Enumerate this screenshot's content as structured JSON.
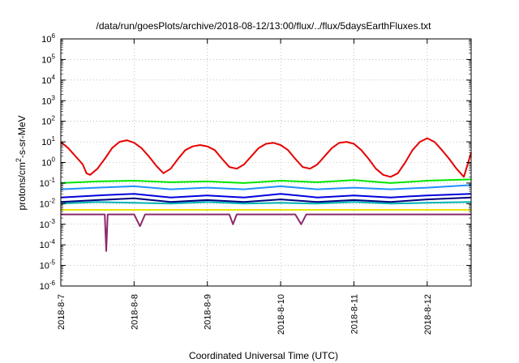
{
  "chart_data": {
    "type": "line",
    "title": "/data/run/goesPlots/archive/2018-08-12/13:00/flux/../flux/5daysEarthFluxes.txt",
    "xlabel": "Coordinated Universal Time (UTC)",
    "ylabel": "protons/cm2-s-sr-MeV",
    "ylabel_parts": {
      "pre": "protons/cm",
      "sup": "2",
      "post": "-s-sr-MeV"
    },
    "yscale": "log",
    "ylim": [
      1e-06,
      1000000.0
    ],
    "xlim": [
      0,
      5.6
    ],
    "x_tick_labels": [
      "2018-8-7",
      "2018-8-8",
      "2018-8-9",
      "2018-8-10",
      "2018-8-11",
      "2018-8-12"
    ],
    "x_tick_values": [
      0,
      1,
      2,
      3,
      4,
      5
    ],
    "y_tick_exponents": [
      -6,
      -5,
      -4,
      -3,
      -2,
      -1,
      0,
      1,
      2,
      3,
      4,
      5,
      6
    ],
    "grid": true,
    "legend": "none",
    "series": [
      {
        "color": "#e60000",
        "x": [
          0,
          0.1,
          0.2,
          0.3,
          0.35,
          0.4,
          0.5,
          0.6,
          0.7,
          0.8,
          0.9,
          1.0,
          1.1,
          1.2,
          1.3,
          1.4,
          1.5,
          1.6,
          1.7,
          1.8,
          1.9,
          2.0,
          2.1,
          2.2,
          2.3,
          2.4,
          2.5,
          2.6,
          2.7,
          2.8,
          2.9,
          3.0,
          3.1,
          3.2,
          3.3,
          3.4,
          3.5,
          3.6,
          3.7,
          3.8,
          3.9,
          4.0,
          4.1,
          4.2,
          4.3,
          4.4,
          4.5,
          4.6,
          4.7,
          4.8,
          4.9,
          5.0,
          5.1,
          5.2,
          5.3,
          5.4,
          5.5,
          5.6
        ],
        "y": [
          10,
          5,
          2,
          0.8,
          0.3,
          0.25,
          0.5,
          1.5,
          5,
          10,
          12,
          9,
          5,
          2,
          0.7,
          0.3,
          0.5,
          1.5,
          4,
          6,
          7,
          6,
          4,
          1.5,
          0.6,
          0.5,
          0.8,
          2,
          5,
          8,
          9,
          7,
          4,
          1.5,
          0.6,
          0.5,
          0.8,
          2,
          5,
          9,
          10,
          8,
          4,
          1.5,
          0.5,
          0.25,
          0.2,
          0.3,
          1,
          4,
          10,
          15,
          10,
          4,
          1.5,
          0.5,
          0.2,
          3
        ]
      },
      {
        "color": "#00e600",
        "x": [
          0,
          0.5,
          1.0,
          1.5,
          2.0,
          2.5,
          3.0,
          3.5,
          4.0,
          4.5,
          5.0,
          5.6
        ],
        "y": [
          0.1,
          0.12,
          0.13,
          0.11,
          0.12,
          0.1,
          0.13,
          0.11,
          0.14,
          0.1,
          0.13,
          0.15
        ]
      },
      {
        "color": "#1e90ff",
        "x": [
          0,
          0.5,
          1.0,
          1.5,
          2.0,
          2.5,
          3.0,
          3.5,
          4.0,
          4.5,
          5.0,
          5.6
        ],
        "y": [
          0.05,
          0.06,
          0.07,
          0.05,
          0.06,
          0.05,
          0.07,
          0.05,
          0.06,
          0.05,
          0.06,
          0.08
        ]
      },
      {
        "color": "#0000dd",
        "x": [
          0,
          0.5,
          1.0,
          1.5,
          2.0,
          2.5,
          3.0,
          3.5,
          4.0,
          4.5,
          5.0,
          5.6
        ],
        "y": [
          0.02,
          0.025,
          0.03,
          0.02,
          0.025,
          0.02,
          0.03,
          0.02,
          0.025,
          0.02,
          0.025,
          0.03
        ]
      },
      {
        "color": "#00b4b4",
        "x": [
          0,
          0.5,
          1.0,
          1.5,
          2.0,
          2.5,
          3.0,
          3.5,
          4.0,
          4.5,
          5.0,
          5.6
        ],
        "y": [
          0.01,
          0.012,
          0.011,
          0.01,
          0.012,
          0.01,
          0.011,
          0.01,
          0.012,
          0.01,
          0.011,
          0.012
        ]
      },
      {
        "color": "#000080",
        "x": [
          0,
          0.5,
          1.0,
          1.5,
          2.0,
          2.5,
          3.0,
          3.5,
          4.0,
          4.5,
          5.0,
          5.6
        ],
        "y": [
          0.012,
          0.015,
          0.018,
          0.012,
          0.015,
          0.012,
          0.016,
          0.012,
          0.015,
          0.012,
          0.016,
          0.02
        ]
      },
      {
        "color": "#e6e600",
        "x": [
          0,
          0.5,
          1.0,
          1.5,
          2.0,
          2.5,
          3.0,
          3.5,
          4.0,
          4.5,
          5.0,
          5.6
        ],
        "y": [
          0.005,
          0.005,
          0.005,
          0.005,
          0.005,
          0.005,
          0.005,
          0.005,
          0.005,
          0.005,
          0.005,
          0.005
        ]
      },
      {
        "color": "#8b2a6e",
        "x": [
          0,
          0.2,
          0.5,
          0.6,
          0.62,
          0.64,
          0.7,
          0.9,
          1.0,
          1.08,
          1.15,
          1.3,
          1.6,
          2.0,
          2.3,
          2.35,
          2.4,
          2.7,
          3.0,
          3.2,
          3.28,
          3.35,
          3.6,
          4.0,
          4.3,
          4.6,
          5.0,
          5.3,
          5.6
        ],
        "y": [
          0.003,
          0.003,
          0.003,
          0.003,
          5e-05,
          0.003,
          0.003,
          0.003,
          0.003,
          0.0008,
          0.003,
          0.003,
          0.003,
          0.003,
          0.003,
          0.001,
          0.003,
          0.003,
          0.003,
          0.003,
          0.001,
          0.003,
          0.003,
          0.003,
          0.003,
          0.003,
          0.003,
          0.003,
          0.003
        ]
      }
    ]
  }
}
